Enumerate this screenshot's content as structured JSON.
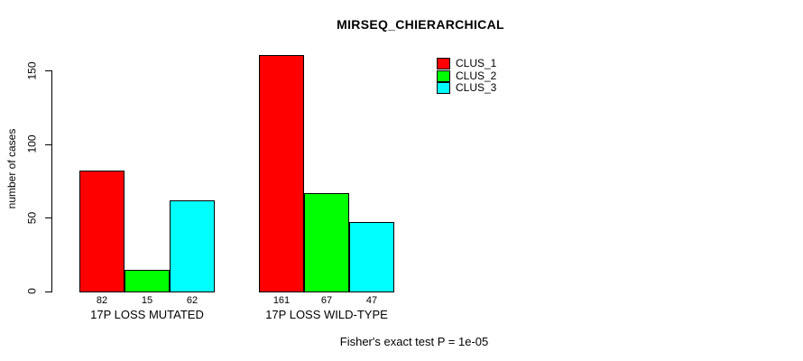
{
  "chart_data": {
    "type": "bar",
    "title": "MIRSEQ_CHIERARCHICAL",
    "ylabel": "number of cases",
    "xlabel": "",
    "categories": [
      "17P LOSS MUTATED",
      "17P LOSS WILD-TYPE"
    ],
    "series": [
      {
        "name": "CLUS_1",
        "color": "#ff0000",
        "values": [
          82,
          161
        ]
      },
      {
        "name": "CLUS_2",
        "color": "#00ff00",
        "values": [
          15,
          67
        ]
      },
      {
        "name": "CLUS_3",
        "color": "#00ffff",
        "values": [
          62,
          47
        ]
      }
    ],
    "yticks": [
      0,
      50,
      100,
      150
    ],
    "ylim": [
      0,
      165
    ],
    "grid": false,
    "legend_position": "top-right",
    "bar_values_shown_below_bars": true,
    "annotation": "Fisher's exact test P = 1e-05"
  },
  "colors": {
    "background": "#ffffff",
    "axis": "#000000",
    "text": "#000000"
  }
}
